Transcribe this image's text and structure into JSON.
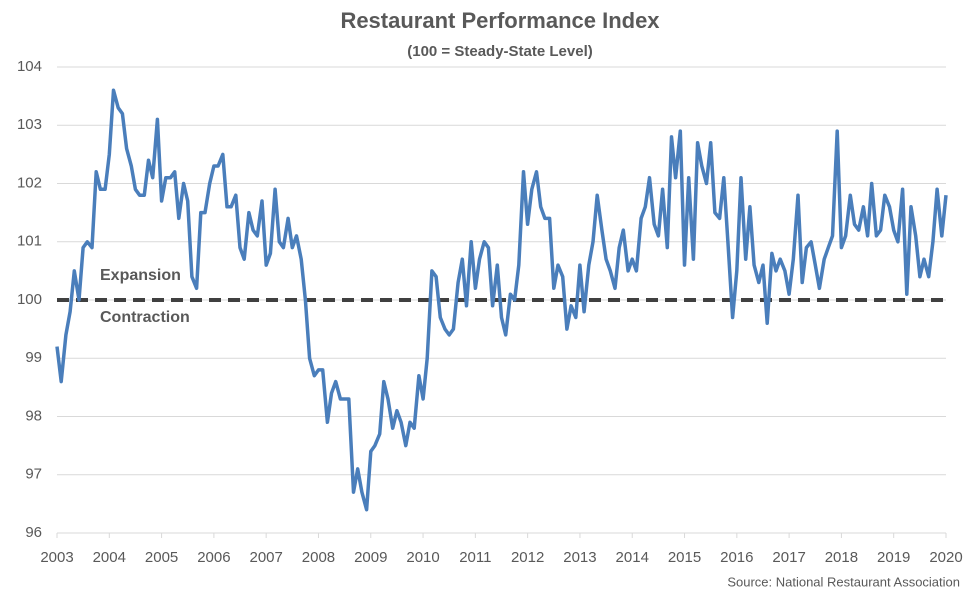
{
  "chart_data": {
    "type": "line",
    "title": "Restaurant Performance Index",
    "subtitle": "(100 = Steady-State Level)",
    "source": "Source: National Restaurant Association",
    "annotations": [
      "Expansion",
      "Contraction"
    ],
    "reference_line": 100,
    "color": "#4a7ebb",
    "grid": true,
    "xlim": [
      2003,
      2020
    ],
    "xticks": [
      2003,
      2004,
      2005,
      2006,
      2007,
      2008,
      2009,
      2010,
      2011,
      2012,
      2013,
      2014,
      2015,
      2016,
      2017,
      2018,
      2019,
      2020
    ],
    "ylim": [
      96,
      104
    ],
    "yticks": [
      96,
      97,
      98,
      99,
      100,
      101,
      102,
      103,
      104
    ],
    "x": [
      2003.0,
      2003.08,
      2003.17,
      2003.25,
      2003.33,
      2003.42,
      2003.5,
      2003.58,
      2003.67,
      2003.75,
      2003.83,
      2003.92,
      2004.0,
      2004.08,
      2004.17,
      2004.25,
      2004.33,
      2004.42,
      2004.5,
      2004.58,
      2004.67,
      2004.75,
      2004.83,
      2004.92,
      2005.0,
      2005.08,
      2005.17,
      2005.25,
      2005.33,
      2005.42,
      2005.5,
      2005.58,
      2005.67,
      2005.75,
      2005.83,
      2005.92,
      2006.0,
      2006.08,
      2006.17,
      2006.25,
      2006.33,
      2006.42,
      2006.5,
      2006.58,
      2006.67,
      2006.75,
      2006.83,
      2006.92,
      2007.0,
      2007.08,
      2007.17,
      2007.25,
      2007.33,
      2007.42,
      2007.5,
      2007.58,
      2007.67,
      2007.75,
      2007.83,
      2007.92,
      2008.0,
      2008.08,
      2008.17,
      2008.25,
      2008.33,
      2008.42,
      2008.5,
      2008.58,
      2008.67,
      2008.75,
      2008.83,
      2008.92,
      2009.0,
      2009.08,
      2009.17,
      2009.25,
      2009.33,
      2009.42,
      2009.5,
      2009.58,
      2009.67,
      2009.75,
      2009.83,
      2009.92,
      2010.0,
      2010.08,
      2010.17,
      2010.25,
      2010.33,
      2010.42,
      2010.5,
      2010.58,
      2010.67,
      2010.75,
      2010.83,
      2010.92,
      2011.0,
      2011.08,
      2011.17,
      2011.25,
      2011.33,
      2011.42,
      2011.5,
      2011.58,
      2011.67,
      2011.75,
      2011.83,
      2011.92,
      2012.0,
      2012.08,
      2012.17,
      2012.25,
      2012.33,
      2012.42,
      2012.5,
      2012.58,
      2012.67,
      2012.75,
      2012.83,
      2012.92,
      2013.0,
      2013.08,
      2013.17,
      2013.25,
      2013.33,
      2013.42,
      2013.5,
      2013.58,
      2013.67,
      2013.75,
      2013.83,
      2013.92,
      2014.0,
      2014.08,
      2014.17,
      2014.25,
      2014.33,
      2014.42,
      2014.5,
      2014.58,
      2014.67,
      2014.75,
      2014.83,
      2014.92,
      2015.0,
      2015.08,
      2015.17,
      2015.25,
      2015.33,
      2015.42,
      2015.5,
      2015.58,
      2015.67,
      2015.75,
      2015.83,
      2015.92,
      2016.0,
      2016.08,
      2016.17,
      2016.25,
      2016.33,
      2016.42,
      2016.5,
      2016.58,
      2016.67,
      2016.75,
      2016.83,
      2016.92,
      2017.0,
      2017.08,
      2017.17,
      2017.25,
      2017.33,
      2017.42,
      2017.5,
      2017.58,
      2017.67,
      2017.75,
      2017.83,
      2017.92,
      2018.0,
      2018.08,
      2018.17,
      2018.25,
      2018.33,
      2018.42,
      2018.5,
      2018.58,
      2018.67,
      2018.75,
      2018.83,
      2018.92,
      2019.0,
      2019.08,
      2019.17,
      2019.25,
      2019.33,
      2019.42,
      2019.5,
      2019.58,
      2019.67,
      2019.75,
      2019.83,
      2019.92,
      2020.0
    ],
    "values": [
      99.2,
      98.6,
      99.4,
      99.8,
      100.5,
      100.0,
      100.9,
      101.0,
      100.9,
      102.2,
      101.9,
      101.9,
      102.5,
      103.6,
      103.3,
      103.2,
      102.6,
      102.3,
      101.9,
      101.8,
      101.8,
      102.4,
      102.1,
      103.1,
      101.7,
      102.1,
      102.1,
      102.2,
      101.4,
      102.0,
      101.7,
      100.4,
      100.2,
      101.5,
      101.5,
      102.0,
      102.3,
      102.3,
      102.5,
      101.6,
      101.6,
      101.8,
      100.9,
      100.7,
      101.5,
      101.2,
      101.1,
      101.7,
      100.6,
      100.8,
      101.9,
      101.0,
      100.9,
      101.4,
      100.9,
      101.1,
      100.7,
      100.0,
      99.0,
      98.7,
      98.8,
      98.8,
      97.9,
      98.4,
      98.6,
      98.3,
      98.3,
      98.3,
      96.7,
      97.1,
      96.7,
      96.4,
      97.4,
      97.5,
      97.7,
      98.6,
      98.3,
      97.8,
      98.1,
      97.9,
      97.5,
      97.9,
      97.8,
      98.7,
      98.3,
      99.0,
      100.5,
      100.4,
      99.7,
      99.5,
      99.4,
      99.5,
      100.3,
      100.7,
      99.9,
      101.0,
      100.2,
      100.7,
      101.0,
      100.9,
      99.9,
      100.6,
      99.7,
      99.4,
      100.1,
      100.0,
      100.6,
      102.2,
      101.3,
      101.9,
      102.2,
      101.6,
      101.4,
      101.4,
      100.2,
      100.6,
      100.4,
      99.5,
      99.9,
      99.7,
      100.6,
      99.8,
      100.6,
      101.0,
      101.8,
      101.2,
      100.7,
      100.5,
      100.2,
      100.9,
      101.2,
      100.5,
      100.7,
      100.5,
      101.4,
      101.6,
      102.1,
      101.3,
      101.1,
      101.9,
      100.9,
      102.8,
      102.1,
      102.9,
      100.6,
      102.1,
      100.7,
      102.7,
      102.3,
      102.0,
      102.7,
      101.5,
      101.4,
      102.1,
      101.0,
      99.7,
      100.5,
      102.1,
      100.7,
      101.6,
      100.6,
      100.3,
      100.6,
      99.6,
      100.8,
      100.5,
      100.7,
      100.5,
      100.1,
      100.7,
      101.8,
      100.3,
      100.9,
      101.0,
      100.6,
      100.2,
      100.7,
      100.9,
      101.1,
      102.9,
      100.9,
      101.1,
      101.8,
      101.3,
      101.2,
      101.6,
      101.1,
      102.0,
      101.1,
      101.2,
      101.8,
      101.6,
      101.2,
      101.0,
      101.9,
      100.1,
      101.6,
      101.1,
      100.4,
      100.7,
      100.4,
      101.0,
      101.9,
      101.1,
      101.8
    ]
  }
}
